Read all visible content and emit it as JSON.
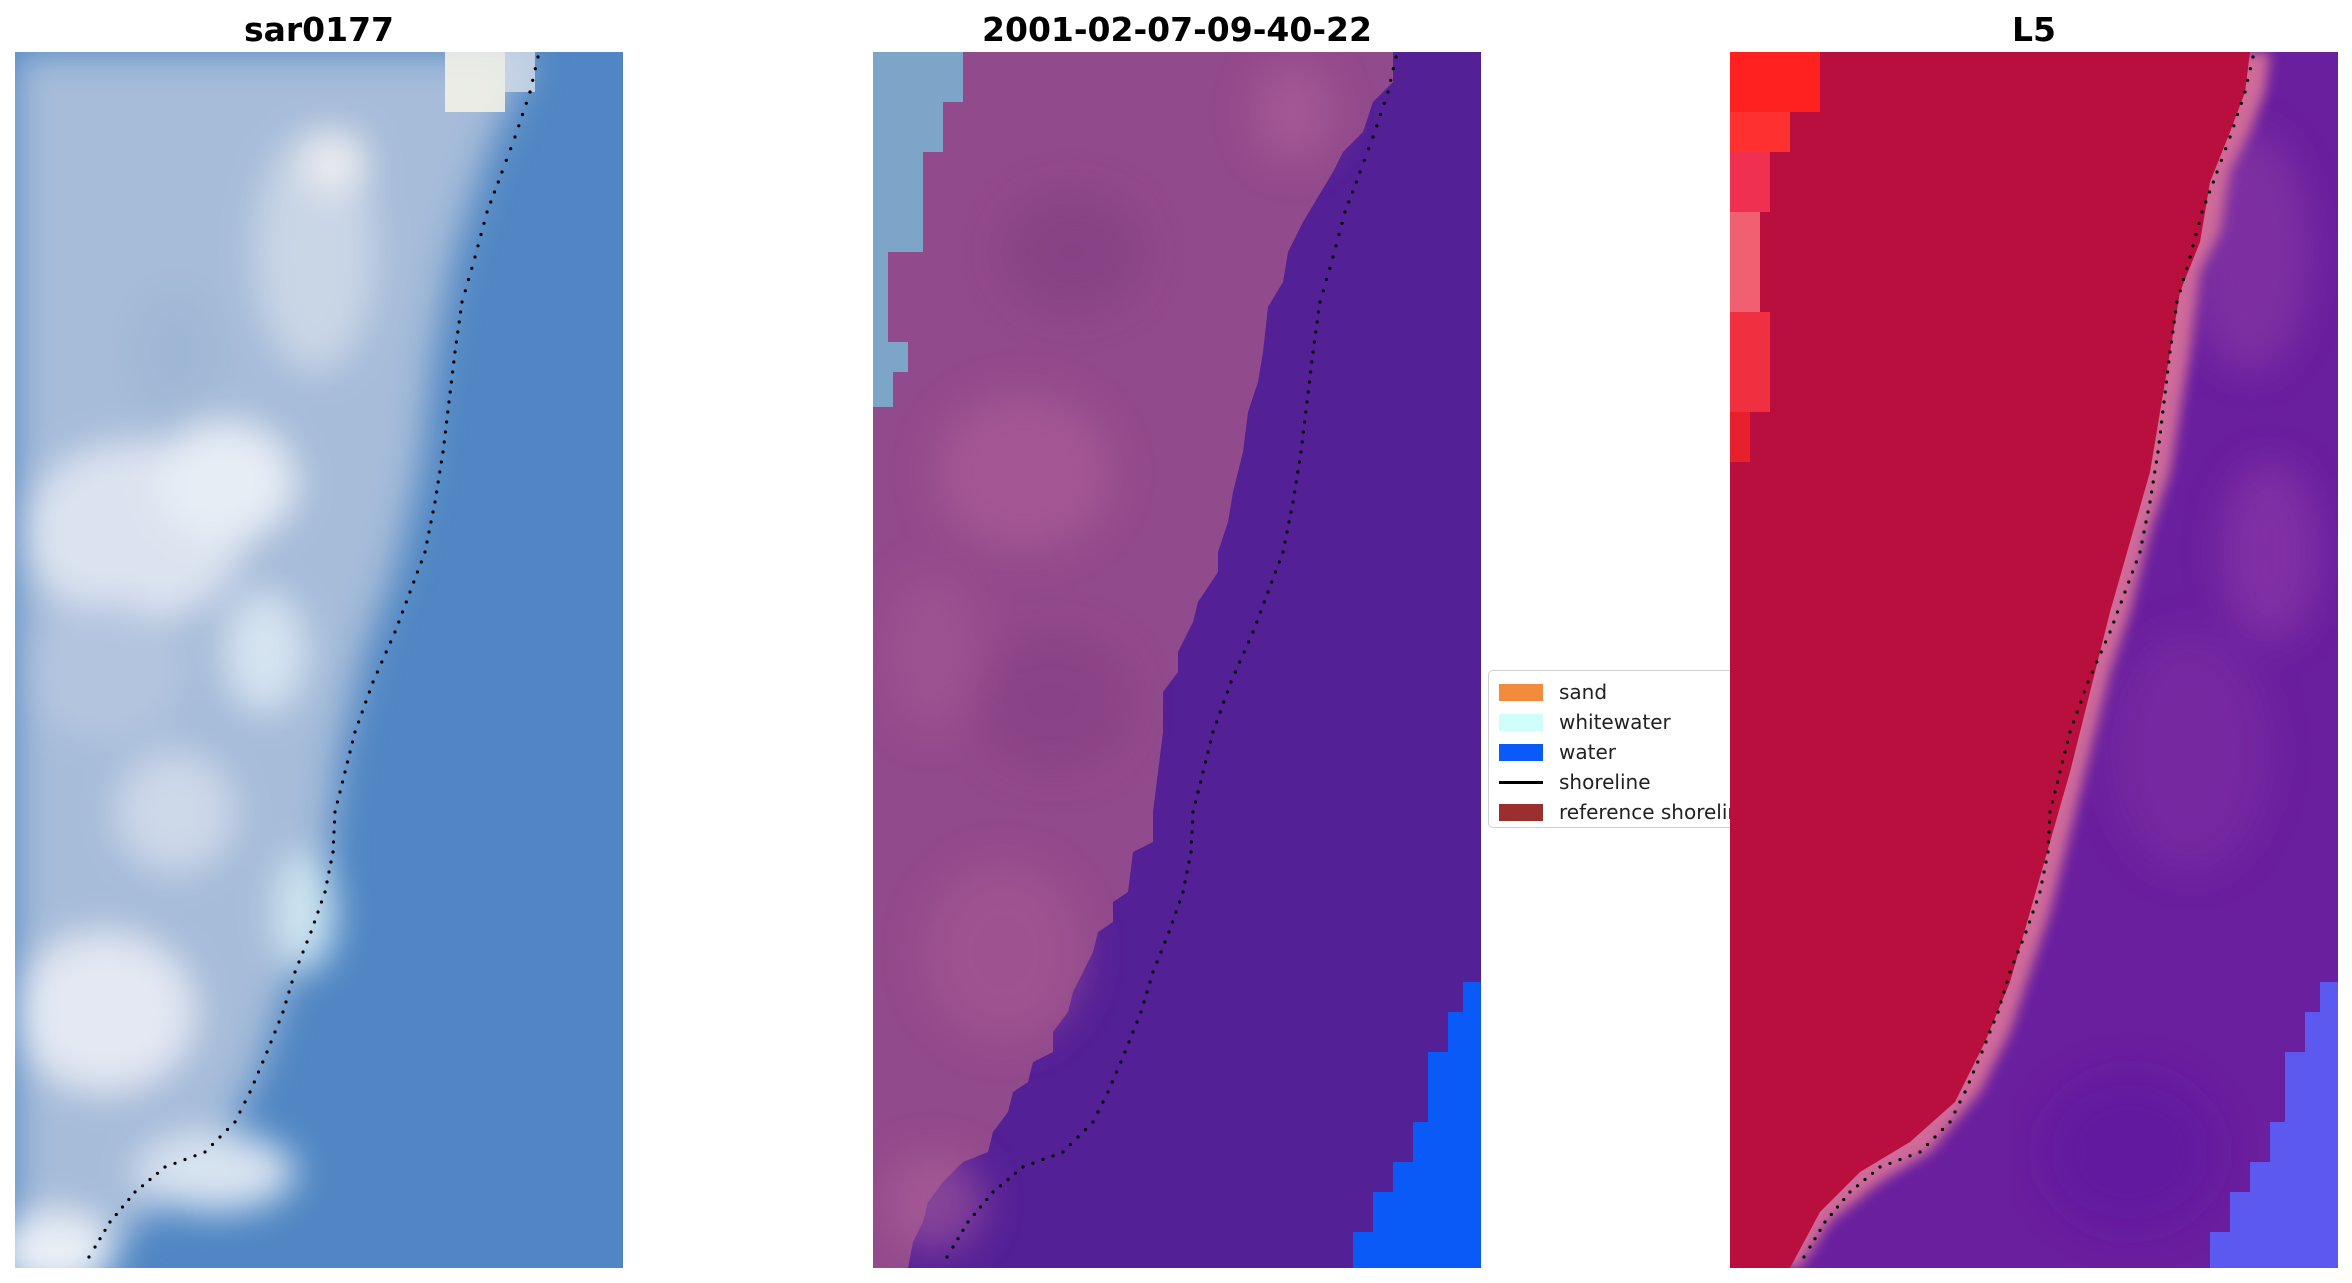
{
  "panels": [
    {
      "title": "sar0177"
    },
    {
      "title": "2001-02-07-09-40-22"
    },
    {
      "title": "L5"
    }
  ],
  "legend": {
    "items": [
      {
        "label": "sand",
        "color": "#f28c3c",
        "kind": "patch"
      },
      {
        "label": "whitewater",
        "color": "#cffffb",
        "kind": "patch"
      },
      {
        "label": "water",
        "color": "#0a5af8",
        "kind": "patch"
      },
      {
        "label": "shoreline",
        "color": "#000000",
        "kind": "line"
      },
      {
        "label": "reference shoreline",
        "color": "#9b2f2f",
        "kind": "patch"
      }
    ]
  },
  "colors": {
    "rgb_water": "#4d84c2",
    "rgb_land": "#a9bdd8",
    "rgb_surf": "#e6eef4",
    "class_land": "#934b8c",
    "class_water": "#532095",
    "class_water_pixels": "#0a5af8",
    "class_whitewater": "#7aa4c8",
    "ndwi_land": "#b8123f",
    "ndwi_water": "#6a1f9e",
    "ndwi_bright": "#ff2020",
    "ndwi_blue": "#5b59f0"
  }
}
